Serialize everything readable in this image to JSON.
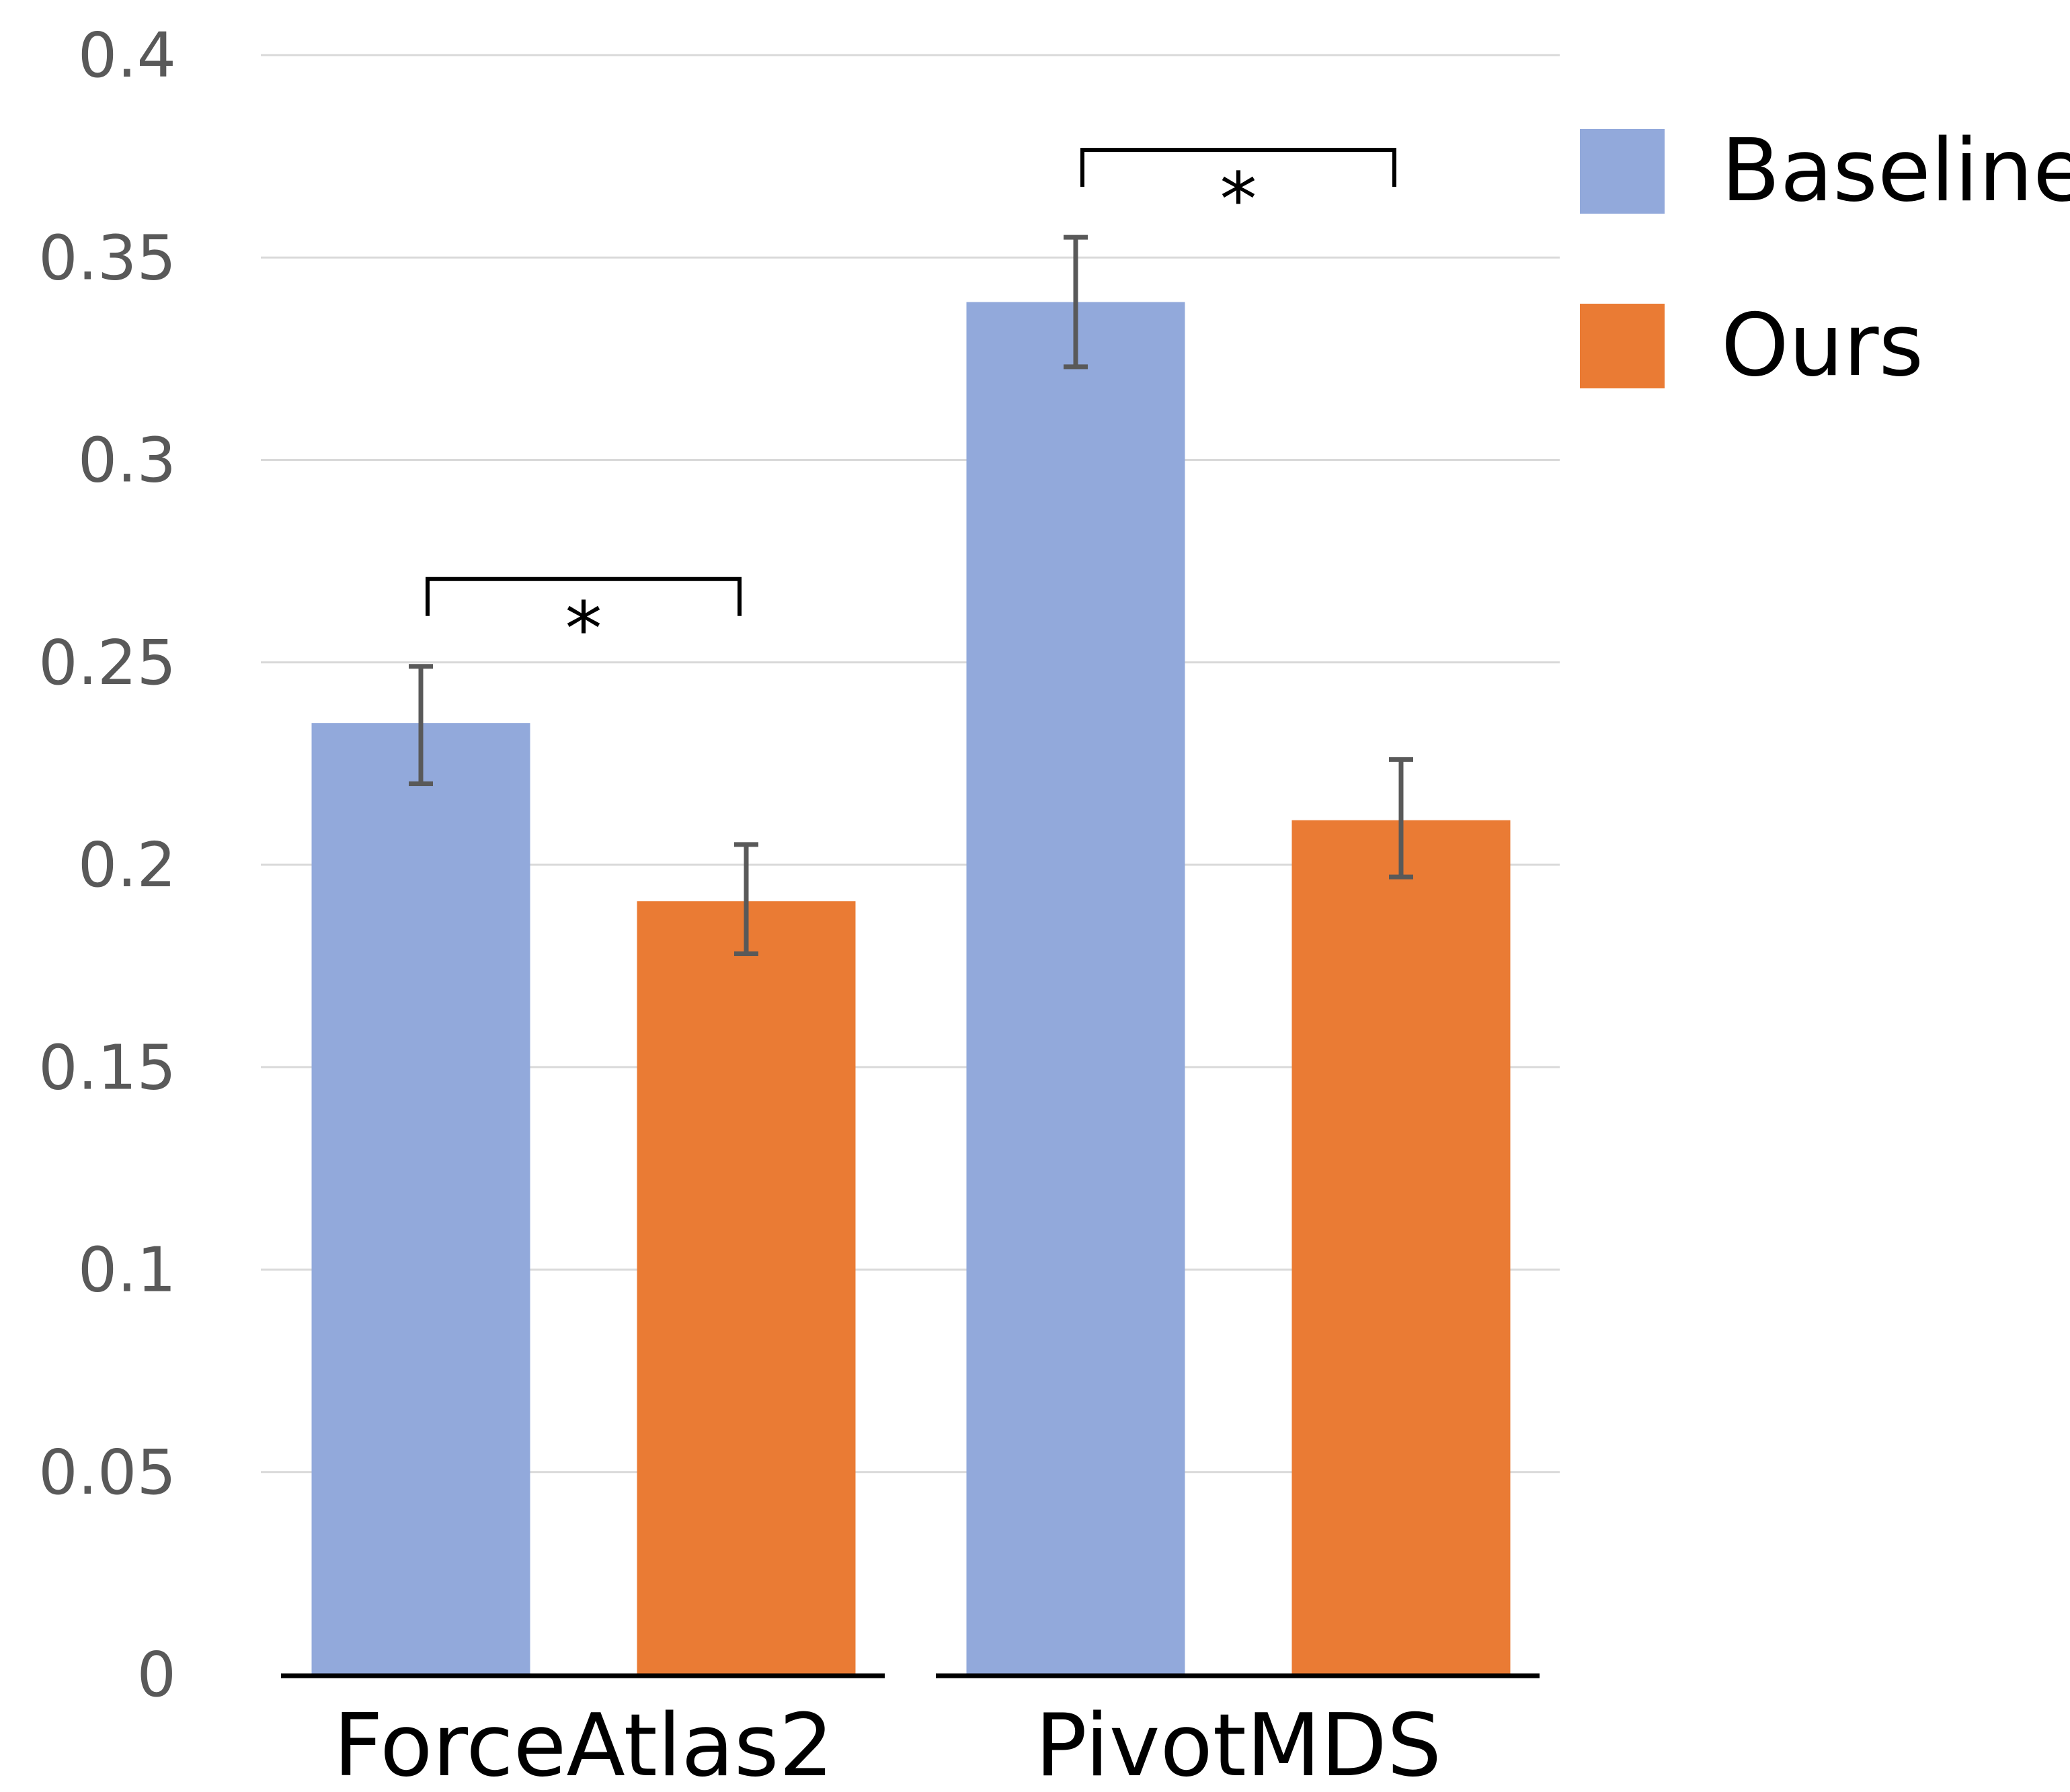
{
  "chart_data": {
    "type": "bar",
    "title": "",
    "xlabel": "",
    "ylabel": "",
    "categories": [
      "ForceAtlas2",
      "PivotMDS"
    ],
    "series": [
      {
        "name": "Baseline",
        "color": "#92A9DB",
        "values": [
          0.235,
          0.339
        ],
        "error_low": [
          0.22,
          0.323
        ],
        "error_high": [
          0.249,
          0.355
        ]
      },
      {
        "name": "Ours",
        "color": "#EA7B34",
        "values": [
          0.191,
          0.211
        ],
        "error_low": [
          0.178,
          0.197
        ],
        "error_high": [
          0.205,
          0.226
        ]
      }
    ],
    "ylim": [
      0,
      0.4
    ],
    "yticks": [
      {
        "value": 0,
        "label": "0"
      },
      {
        "value": 0.05,
        "label": "0.05"
      },
      {
        "value": 0.1,
        "label": "0.1"
      },
      {
        "value": 0.15,
        "label": "0.15"
      },
      {
        "value": 0.2,
        "label": "0.2"
      },
      {
        "value": 0.25,
        "label": "0.25"
      },
      {
        "value": 0.3,
        "label": "0.3"
      },
      {
        "value": 0.35,
        "label": "0.35"
      },
      {
        "value": 0.4,
        "label": "0.4"
      }
    ],
    "grid": true,
    "legend": {
      "position": "top-right"
    },
    "annotations": [
      {
        "type": "significance",
        "category": "ForceAtlas2",
        "label": "*"
      },
      {
        "type": "significance",
        "category": "PivotMDS",
        "label": "*"
      }
    ],
    "colors": {
      "grid": "#D9D9D9",
      "axis": "#000000",
      "error_bar": "#595959",
      "tick_text": "#595959"
    }
  }
}
